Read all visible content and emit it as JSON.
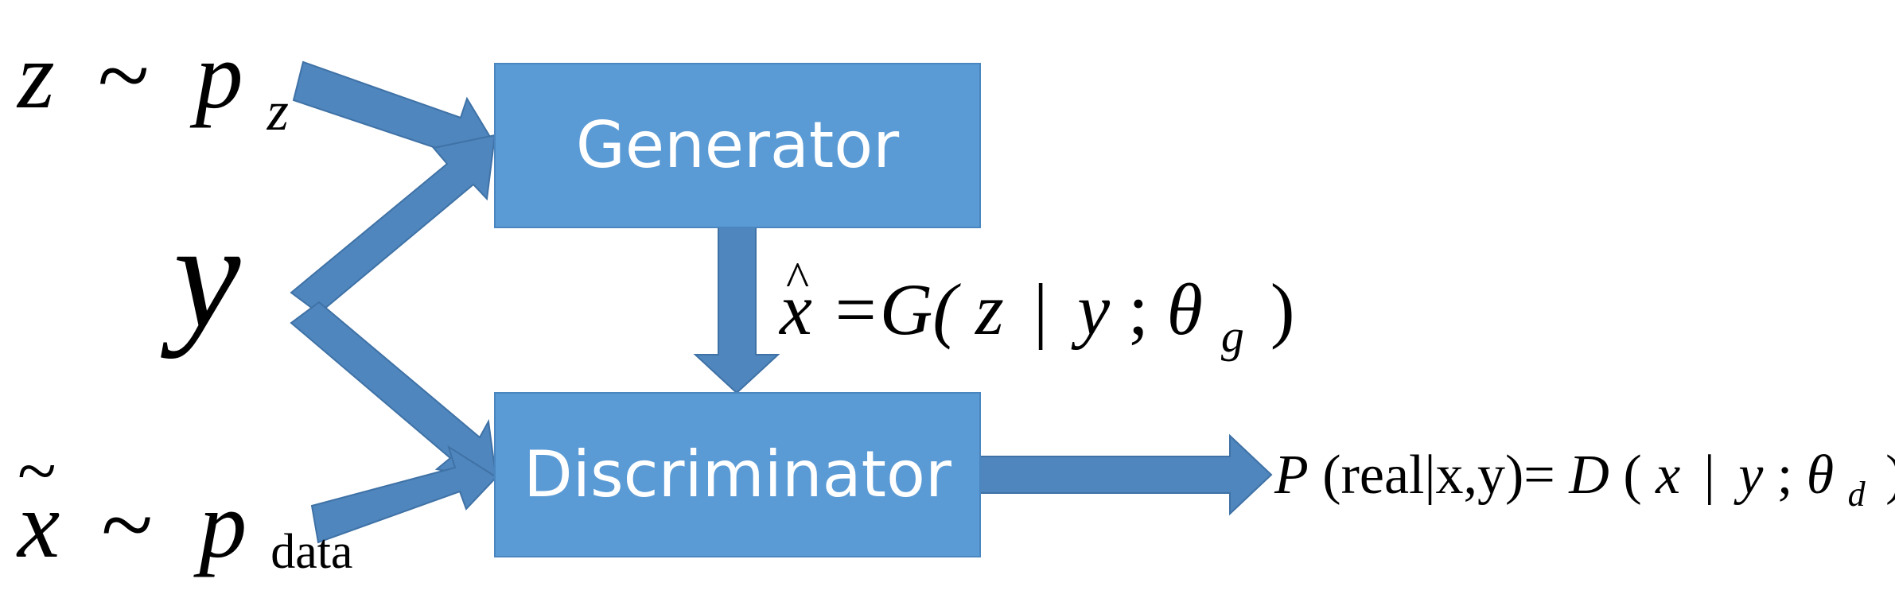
{
  "blocks": {
    "generator": {
      "label": "Generator"
    },
    "discriminator": {
      "label": "Discriminator"
    }
  },
  "inputs": {
    "noise": {
      "var": "z",
      "op": "~",
      "dist": "p",
      "sub": "z"
    },
    "condition": {
      "var": "y"
    },
    "data": {
      "var": "x",
      "op": "~",
      "dist": "p",
      "sub": "data"
    }
  },
  "formulas": {
    "generated": {
      "lhs": "x",
      "hat": "^",
      "eq": "=G(",
      "z": "z",
      "bar": "|",
      "y": "y",
      "semi": ";",
      "theta": "θ",
      "sub": "g",
      "close": ")"
    },
    "output": {
      "p": "P",
      "args": "(real|x,y)=",
      "d": "D",
      "open": "(",
      "x": "x",
      "bar": "|",
      "y": "y",
      "semi": ";",
      "theta": "θ",
      "sub": "d",
      "close": ")"
    }
  },
  "colors": {
    "box_fill": "#5b9bd5",
    "box_stroke": "#4a86bf",
    "arrow_fill": "#4f86bd",
    "arrow_stroke": "#3f72a6",
    "text_on_box": "#ffffff",
    "text": "#000000"
  }
}
